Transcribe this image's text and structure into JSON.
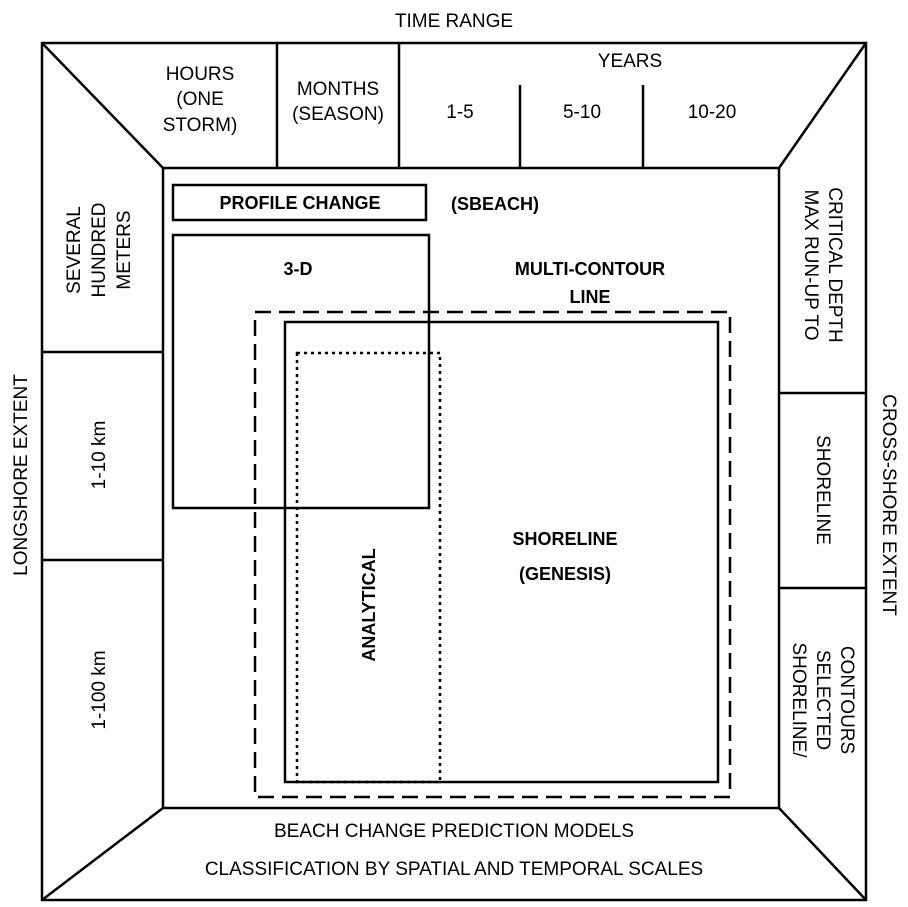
{
  "title": "TIME RANGE",
  "left_axis": "LONGSHORE EXTENT",
  "right_axis": "CROSS-SHORE EXTENT",
  "time_columns": {
    "hours": [
      "HOURS",
      "(ONE",
      "STORM)"
    ],
    "months": [
      "MONTHS",
      "(SEASON)"
    ],
    "years": "YEARS",
    "year_ranges": [
      "1-5",
      "5-10",
      "10-20"
    ]
  },
  "longshore_rows": [
    [
      "SEVERAL",
      "HUNDRED",
      "METERS"
    ],
    "1-10 km",
    "1-100 km"
  ],
  "crossshore_rows": [
    [
      "MAX RUN-UP TO",
      "CRITICAL DEPTH"
    ],
    "SHORELINE",
    [
      "SHORELINE/",
      "SELECTED",
      "CONTOURS"
    ]
  ],
  "models": {
    "profile_change": "PROFILE CHANGE",
    "sbeach": "(SBEACH)",
    "three_d": "3-D",
    "multi_contour": [
      "MULTI-CONTOUR",
      "LINE"
    ],
    "analytical": "ANALYTICAL",
    "shoreline": [
      "SHORELINE",
      "(GENESIS)"
    ]
  },
  "footer": {
    "title": "BEACH CHANGE PREDICTION MODELS",
    "subtitle": "CLASSIFICATION BY SPATIAL AND TEMPORAL SCALES"
  }
}
